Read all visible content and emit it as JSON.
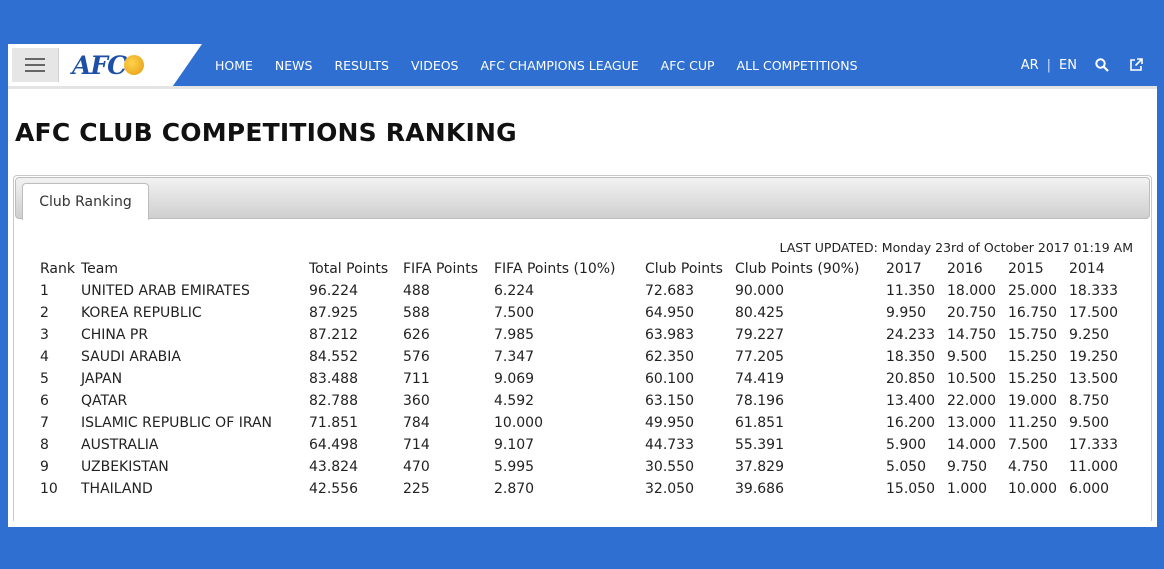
{
  "nav": {
    "logo": "AFC",
    "links": [
      "HOME",
      "NEWS",
      "RESULTS",
      "VIDEOS",
      "AFC CHAMPIONS LEAGUE",
      "AFC CUP",
      "ALL COMPETITIONS"
    ],
    "lang_ar": "AR",
    "lang_sep": "|",
    "lang_en": "EN"
  },
  "page": {
    "title": "AFC CLUB COMPETITIONS RANKING",
    "tab": "Club Ranking",
    "last_updated": "LAST UPDATED: Monday 23rd of October 2017 01:19 AM"
  },
  "table": {
    "headers": [
      "Rank",
      "Team",
      "Total Points",
      "FIFA Points",
      "FIFA Points (10%)",
      "Club Points",
      "Club Points (90%)",
      "2017",
      "2016",
      "2015",
      "2014"
    ],
    "rows": [
      [
        "1",
        "UNITED ARAB EMIRATES",
        "96.224",
        "488",
        "6.224",
        "72.683",
        "90.000",
        "11.350",
        "18.000",
        "25.000",
        "18.333"
      ],
      [
        "2",
        "KOREA REPUBLIC",
        "87.925",
        "588",
        "7.500",
        "64.950",
        "80.425",
        "9.950",
        "20.750",
        "16.750",
        "17.500"
      ],
      [
        "3",
        "CHINA PR",
        "87.212",
        "626",
        "7.985",
        "63.983",
        "79.227",
        "24.233",
        "14.750",
        "15.750",
        "9.250"
      ],
      [
        "4",
        "SAUDI ARABIA",
        "84.552",
        "576",
        "7.347",
        "62.350",
        "77.205",
        "18.350",
        "9.500",
        "15.250",
        "19.250"
      ],
      [
        "5",
        "JAPAN",
        "83.488",
        "711",
        "9.069",
        "60.100",
        "74.419",
        "20.850",
        "10.500",
        "15.250",
        "13.500"
      ],
      [
        "6",
        "QATAR",
        "82.788",
        "360",
        "4.592",
        "63.150",
        "78.196",
        "13.400",
        "22.000",
        "19.000",
        "8.750"
      ],
      [
        "7",
        "ISLAMIC REPUBLIC OF IRAN",
        "71.851",
        "784",
        "10.000",
        "49.950",
        "61.851",
        "16.200",
        "13.000",
        "11.250",
        "9.500"
      ],
      [
        "8",
        "AUSTRALIA",
        "64.498",
        "714",
        "9.107",
        "44.733",
        "55.391",
        "5.900",
        "14.000",
        "7.500",
        "17.333"
      ],
      [
        "9",
        "UZBEKISTAN",
        "43.824",
        "470",
        "5.995",
        "30.550",
        "37.829",
        "5.050",
        "9.750",
        "4.750",
        "11.000"
      ],
      [
        "10",
        "THAILAND",
        "42.556",
        "225",
        "2.870",
        "32.050",
        "39.686",
        "15.050",
        "1.000",
        "10.000",
        "6.000"
      ]
    ]
  },
  "icons": {
    "menu": "hamburger-menu-icon",
    "search": "search-icon",
    "external": "external-link-icon"
  },
  "colors": {
    "brand_blue": "#2f6fd1"
  }
}
